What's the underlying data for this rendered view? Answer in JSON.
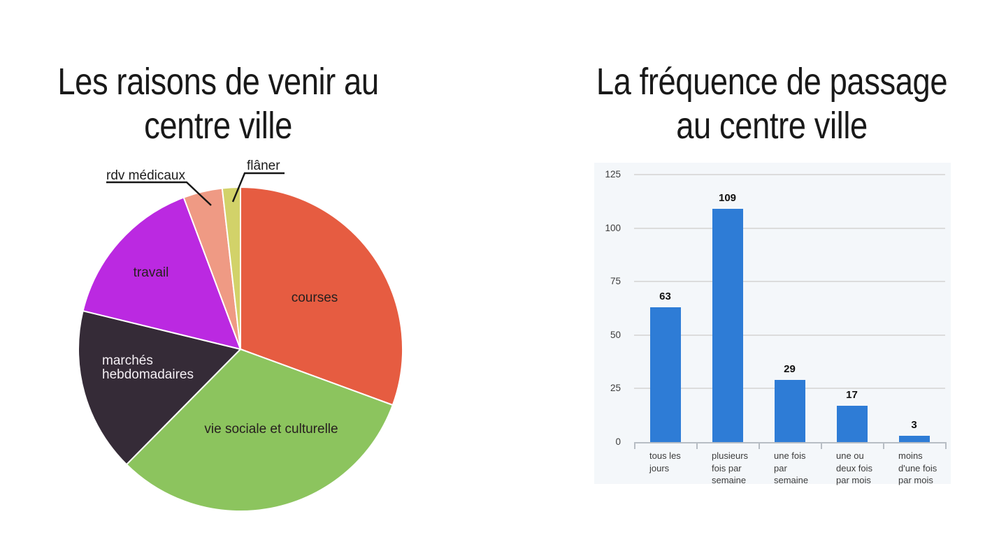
{
  "left_chart": {
    "title_lines": [
      "Les raisons de venir au",
      "centre ville"
    ]
  },
  "right_chart": {
    "title_lines": [
      "La fréquence de passage",
      "au centre ville"
    ]
  },
  "chart_data": [
    {
      "type": "pie",
      "title": "Les raisons de venir au centre ville",
      "start_angle_deg": 0,
      "direction": "clockwise",
      "slices": [
        {
          "label": "courses",
          "percent": 30.6,
          "color": "#e65c41",
          "label_color": "#27201f",
          "callout": false
        },
        {
          "label": "vie sociale et culturelle",
          "percent": 31.8,
          "color": "#8cc45e",
          "label_color": "#27201f",
          "callout": false
        },
        {
          "label": "marchés hebdomadaires",
          "label_lines": [
            "marchés",
            "hebdomadaires"
          ],
          "percent": 16.4,
          "color": "#352b37",
          "label_color": "#f4eff4",
          "callout": false
        },
        {
          "label": "travail",
          "percent": 15.5,
          "color": "#bb29e1",
          "label_color": "#27201f",
          "callout": false
        },
        {
          "label": "rdv médicaux",
          "percent": 3.9,
          "color": "#ef9a84",
          "label_color": "#1d1d1d",
          "callout": true
        },
        {
          "label": "flâner",
          "percent": 1.8,
          "color": "#d2d269",
          "label_color": "#1d1d1d",
          "callout": true
        }
      ],
      "gap_color": "#ffffff",
      "callout_line_color": "#161616"
    },
    {
      "type": "bar",
      "title": "La fréquence de passage au centre ville",
      "categories": [
        "tous les jours",
        "plusieurs fois par semaine",
        "une fois par semaine",
        "une ou deux fois par mois",
        "moins d'une fois par mois"
      ],
      "category_lines": [
        [
          "tous les",
          "jours"
        ],
        [
          "plusieurs",
          "fois par",
          "semaine"
        ],
        [
          "une fois",
          "par",
          "semaine"
        ],
        [
          "une ou",
          "deux fois",
          "par mois"
        ],
        [
          "moins",
          "d'une fois",
          "par mois"
        ]
      ],
      "values": [
        63,
        109,
        29,
        17,
        3
      ],
      "y_ticks": [
        0,
        25,
        50,
        75,
        100,
        125
      ],
      "ylim": [
        0,
        125
      ],
      "grid": true,
      "legend": "none",
      "bar_color": "#2e7cd6",
      "plot_bg": "#f4f7fa",
      "grid_color": "#dcdcdc",
      "axis_color": "#b7bdc4",
      "value_label_color": "#101010",
      "tick_label_color": "#3c3c3c"
    }
  ]
}
